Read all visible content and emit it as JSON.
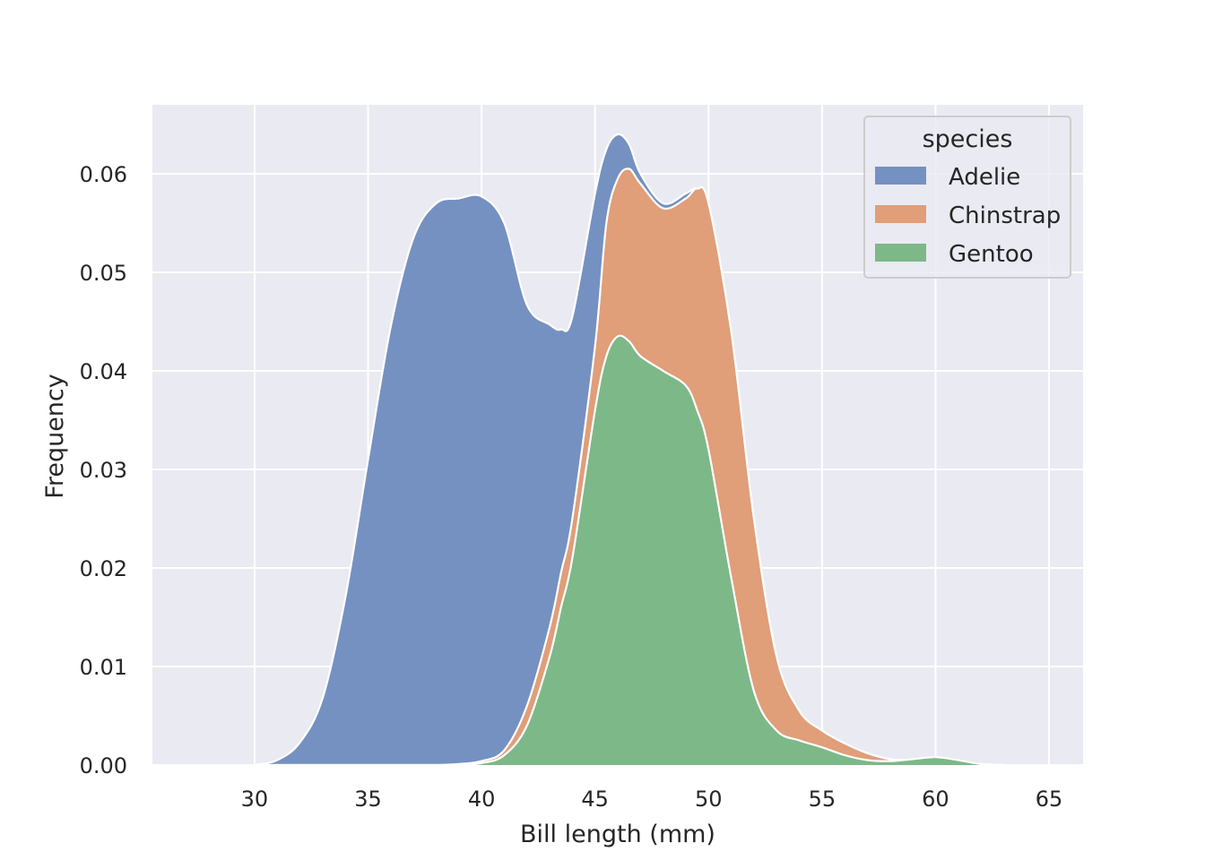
{
  "chart_data": {
    "type": "area",
    "stacked": true,
    "xlabel": "Bill length (mm)",
    "ylabel": "Frequency",
    "xlim": [
      25.5,
      66.5
    ],
    "ylim": [
      0,
      0.067
    ],
    "xticks": [
      30,
      35,
      40,
      45,
      50,
      55,
      60,
      65
    ],
    "yticks": [
      0.0,
      0.01,
      0.02,
      0.03,
      0.04,
      0.05,
      0.06
    ],
    "ytick_labels": [
      "0.00",
      "0.01",
      "0.02",
      "0.03",
      "0.04",
      "0.05",
      "0.06"
    ],
    "grid": true,
    "legend": {
      "title": "species",
      "position": "top-right"
    },
    "x": [
      30,
      31,
      32,
      33,
      34,
      35,
      36,
      37,
      38,
      39,
      40,
      41,
      42,
      43,
      43.5,
      44,
      45,
      45.5,
      46,
      46.5,
      47,
      48,
      49,
      49.5,
      50,
      51,
      52,
      53,
      54,
      55,
      56,
      57,
      58,
      59,
      60,
      61,
      62,
      63
    ],
    "series": [
      {
        "name": "Adelie",
        "color": "#7591c1",
        "cumulative_top": [
          0.0,
          0.0005,
          0.0023,
          0.0068,
          0.017,
          0.031,
          0.0445,
          0.0535,
          0.057,
          0.0575,
          0.0577,
          0.055,
          0.0467,
          0.0447,
          0.0442,
          0.0455,
          0.058,
          0.0625,
          0.064,
          0.063,
          0.06,
          0.057,
          0.058,
          0.0585,
          0.057,
          0.044,
          0.025,
          0.011,
          0.0055,
          0.0035,
          0.0022,
          0.0012,
          0.0006,
          0.0005,
          0.0004,
          0.0002,
          0.0001,
          0.0
        ]
      },
      {
        "name": "Chinstrap",
        "color": "#e09e79",
        "cumulative_top": [
          0.0,
          0.0,
          0.0,
          0.0,
          0.0,
          0.0,
          0.0,
          0.0,
          0.0,
          0.0001,
          0.0004,
          0.0015,
          0.006,
          0.014,
          0.0195,
          0.025,
          0.0425,
          0.055,
          0.0595,
          0.0605,
          0.059,
          0.0565,
          0.0575,
          0.0585,
          0.057,
          0.044,
          0.025,
          0.011,
          0.0055,
          0.0035,
          0.0022,
          0.0012,
          0.0006,
          0.0005,
          0.0004,
          0.0002,
          0.0001,
          0.0
        ]
      },
      {
        "name": "Gentoo",
        "color": "#7db888",
        "cumulative_top": [
          0.0,
          0.0,
          0.0,
          0.0,
          0.0,
          0.0,
          0.0,
          0.0,
          0.0,
          0.0,
          0.0002,
          0.001,
          0.004,
          0.011,
          0.016,
          0.021,
          0.036,
          0.0415,
          0.0435,
          0.043,
          0.0415,
          0.04,
          0.0385,
          0.036,
          0.032,
          0.019,
          0.0075,
          0.0035,
          0.0025,
          0.0018,
          0.001,
          0.0005,
          0.0004,
          0.0006,
          0.0008,
          0.0005,
          0.0001,
          0.0
        ]
      }
    ]
  }
}
